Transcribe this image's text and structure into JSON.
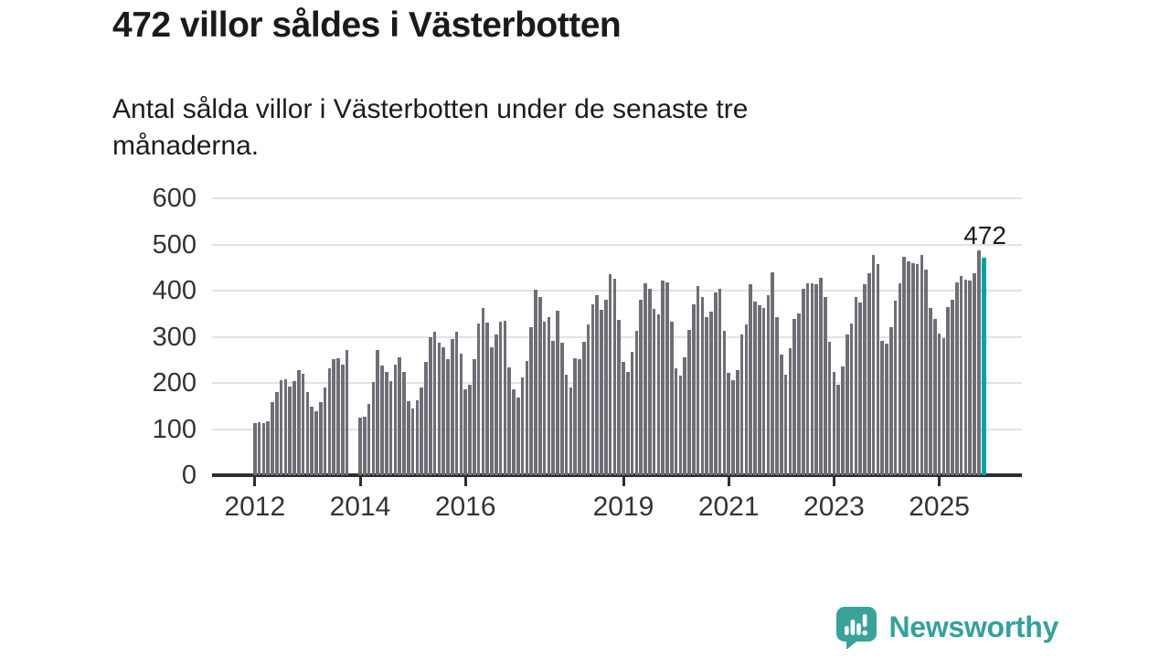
{
  "header": {
    "title": "472 villor såldes i Västerbotten",
    "subtitle_lines": [
      "Antal sålda villor i Västerbotten under de senaste tre",
      "månaderna."
    ]
  },
  "chart_data": {
    "type": "bar",
    "title": "472 villor såldes i Västerbotten",
    "subtitle": "Antal sålda villor i Västerbotten under de senaste tre månaderna.",
    "xlabel": "",
    "ylabel": "",
    "ylim": [
      0,
      600
    ],
    "y_ticks": [
      0,
      100,
      200,
      300,
      400,
      500,
      600
    ],
    "x_tick_years": [
      "2012",
      "2014",
      "2016",
      "2019",
      "2021",
      "2023",
      "2025"
    ],
    "start_year": 2012,
    "frequency": "monthly-rolling-3-month-sum",
    "grid": true,
    "legend": "none",
    "bar_color": "#6f6e76",
    "highlight_color": "#00a3a3",
    "annotation": {
      "text": "472"
    },
    "values": [
      112,
      115,
      113,
      117,
      158,
      181,
      206,
      207,
      193,
      203,
      228,
      219,
      180,
      148,
      138,
      158,
      190,
      232,
      252,
      253,
      240,
      272,
      null,
      null,
      124,
      127,
      155,
      201,
      272,
      237,
      224,
      203,
      240,
      256,
      223,
      160,
      145,
      162,
      190,
      246,
      300,
      310,
      288,
      278,
      252,
      296,
      311,
      264,
      186,
      197,
      252,
      329,
      362,
      331,
      277,
      304,
      333,
      335,
      234,
      186,
      168,
      211,
      247,
      320,
      401,
      386,
      333,
      343,
      292,
      356,
      287,
      218,
      190,
      254,
      251,
      290,
      327,
      370,
      391,
      358,
      380,
      436,
      426,
      337,
      245,
      223,
      267,
      312,
      381,
      416,
      404,
      360,
      348,
      422,
      417,
      333,
      232,
      215,
      256,
      314,
      371,
      410,
      387,
      343,
      355,
      397,
      404,
      312,
      221,
      206,
      228,
      305,
      327,
      413,
      376,
      368,
      363,
      391,
      439,
      342,
      261,
      218,
      276,
      338,
      351,
      404,
      415,
      416,
      413,
      428,
      386,
      289,
      223,
      197,
      236,
      305,
      329,
      386,
      375,
      413,
      437,
      477,
      457,
      292,
      285,
      320,
      378,
      416,
      474,
      463,
      459,
      457,
      477,
      446,
      362,
      338,
      307,
      297,
      364,
      380,
      417,
      432,
      424,
      421,
      437,
      487,
      472
    ]
  },
  "footer": {
    "brand": "Newsworthy"
  }
}
